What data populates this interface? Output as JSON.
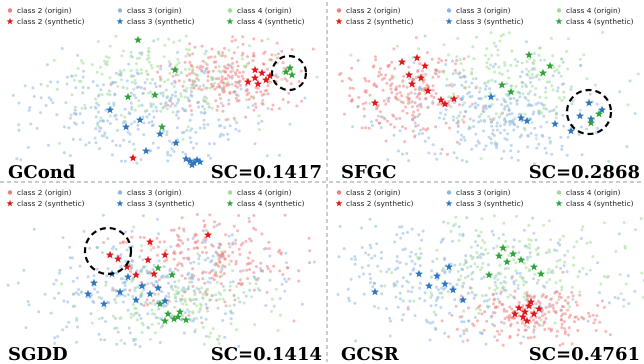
{
  "chart_data": [
    {
      "type": "scatter",
      "method": "GCond",
      "score": "SC=0.1417",
      "highlight_circle": true,
      "legend_entries": [
        {
          "label": "class 2 (origin)",
          "series": "c2o"
        },
        {
          "label": "class 3 (origin)",
          "series": "c3o"
        },
        {
          "label": "class 4 (origin)",
          "series": "c4o"
        },
        {
          "label": "class 2 (synthetic)",
          "series": "c2s"
        },
        {
          "label": "class 3 (synthetic)",
          "series": "c3s"
        },
        {
          "label": "class 4 (synthetic)",
          "series": "c4s"
        }
      ]
    },
    {
      "type": "scatter",
      "method": "SFGC",
      "score": "SC=0.2868",
      "highlight_circle": true,
      "legend_entries": [
        {
          "label": "class 2 (origin)",
          "series": "c2o"
        },
        {
          "label": "class 3 (origin)",
          "series": "c3o"
        },
        {
          "label": "class 4 (origin)",
          "series": "c4o"
        },
        {
          "label": "class 2 (synthetic)",
          "series": "c2s"
        },
        {
          "label": "class 3 (synthetic)",
          "series": "c3s"
        },
        {
          "label": "class 4 (synthetic)",
          "series": "c4s"
        }
      ]
    },
    {
      "type": "scatter",
      "method": "SGDD",
      "score": "SC=0.1414",
      "highlight_circle": true,
      "legend_entries": [
        {
          "label": "class 2 (origin)",
          "series": "c2o"
        },
        {
          "label": "class 3 (origin)",
          "series": "c3o"
        },
        {
          "label": "class 4 (origin)",
          "series": "c4o"
        },
        {
          "label": "class 2 (synthetic)",
          "series": "c2s"
        },
        {
          "label": "class 3 (synthetic)",
          "series": "c3s"
        },
        {
          "label": "class 4 (synthetic)",
          "series": "c4s"
        }
      ]
    },
    {
      "type": "scatter",
      "method": "GCSR",
      "score": "SC=0.4761",
      "highlight_circle": false,
      "legend_entries": [
        {
          "label": "class 2 (origin)",
          "series": "c2o"
        },
        {
          "label": "class 3 (origin)",
          "series": "c3o"
        },
        {
          "label": "class 4 (origin)",
          "series": "c4o"
        },
        {
          "label": "class 2 (synthetic)",
          "series": "c2s"
        },
        {
          "label": "class 3 (synthetic)",
          "series": "c3s"
        },
        {
          "label": "class 4 (synthetic)",
          "series": "c4s"
        }
      ]
    }
  ],
  "colors": {
    "c2o": "#f08080",
    "c3o": "#8fb8e0",
    "c4o": "#9fdc94",
    "c2s": "#e3161b",
    "c3s": "#2f78c0",
    "c4s": "#2ea53a"
  }
}
